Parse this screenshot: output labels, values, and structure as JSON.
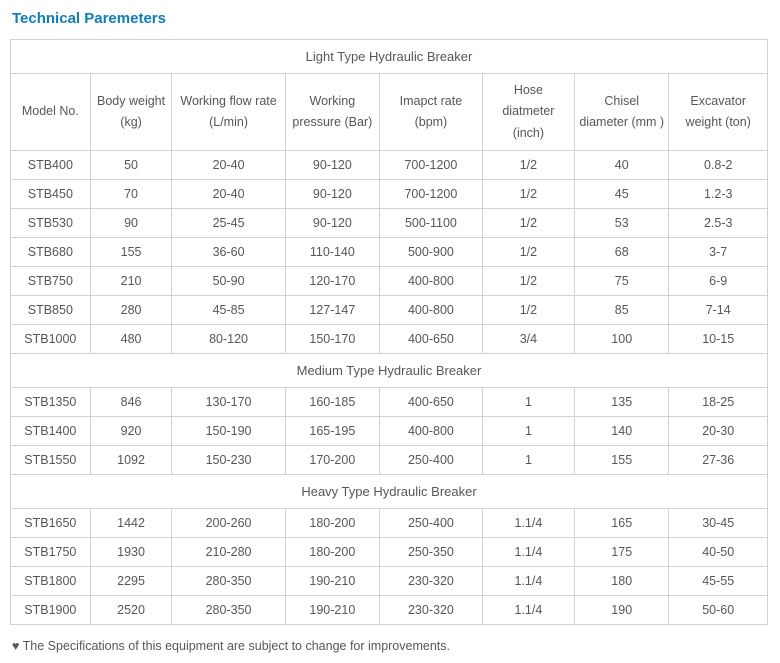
{
  "title": "Technical Paremeters",
  "columns": [
    "Model No.",
    "Body weight (kg)",
    "Working flow rate (L/min)",
    "Working pressure (Bar)",
    "Imapct rate (bpm)",
    "Hose diatmeter (inch)",
    "Chisel diameter (mm )",
    "Excavator weight (ton)"
  ],
  "sections": [
    {
      "label": "Light Type Hydraulic Breaker",
      "rows": [
        [
          "STB400",
          "50",
          "20-40",
          "90-120",
          "700-1200",
          "1/2",
          "40",
          "0.8-2"
        ],
        [
          "STB450",
          "70",
          "20-40",
          "90-120",
          "700-1200",
          "1/2",
          "45",
          "1.2-3"
        ],
        [
          "STB530",
          "90",
          "25-45",
          "90-120",
          "500-1100",
          "1/2",
          "53",
          "2.5-3"
        ],
        [
          "STB680",
          "155",
          "36-60",
          "110-140",
          "500-900",
          "1/2",
          "68",
          "3-7"
        ],
        [
          "STB750",
          "210",
          "50-90",
          "120-170",
          "400-800",
          "1/2",
          "75",
          "6-9"
        ],
        [
          "STB850",
          "280",
          "45-85",
          "127-147",
          "400-800",
          "1/2",
          "85",
          "7-14"
        ],
        [
          "STB1000",
          "480",
          "80-120",
          "150-170",
          "400-650",
          "3/4",
          "100",
          "10-15"
        ]
      ]
    },
    {
      "label": "Medium Type Hydraulic Breaker",
      "rows": [
        [
          "STB1350",
          "846",
          "130-170",
          "160-185",
          "400-650",
          "1",
          "135",
          "18-25"
        ],
        [
          "STB1400",
          "920",
          "150-190",
          "165-195",
          "400-800",
          "1",
          "140",
          "20-30"
        ],
        [
          "STB1550",
          "1092",
          "150-230",
          "170-200",
          "250-400",
          "1",
          "155",
          "27-36"
        ]
      ]
    },
    {
      "label": "Heavy Type Hydraulic Breaker",
      "rows": [
        [
          "STB1650",
          "1442",
          "200-260",
          "180-200",
          "250-400",
          "1.1/4",
          "165",
          "30-45"
        ],
        [
          "STB1750",
          "1930",
          "210-280",
          "180-200",
          "250-350",
          "1.1/4",
          "175",
          "40-50"
        ],
        [
          "STB1800",
          "2295",
          "280-350",
          "190-210",
          "230-320",
          "1.1/4",
          "180",
          "45-55"
        ],
        [
          "STB1900",
          "2520",
          "280-350",
          "190-210",
          "230-320",
          "1.1/4",
          "190",
          "50-60"
        ]
      ]
    }
  ],
  "note": "♥ The Specifications of this equipment are subject to change for improvements.",
  "colors": {
    "title": "#0d7dc1",
    "text": "#575757",
    "border": "#d2d2d2",
    "background": "#ffffff"
  }
}
